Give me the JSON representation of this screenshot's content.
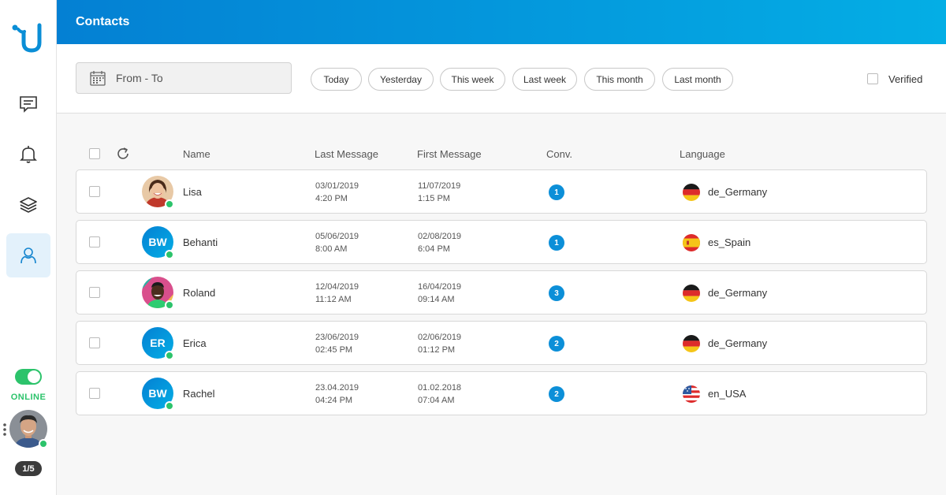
{
  "header": {
    "title": "Contacts"
  },
  "sidebar": {
    "items": [
      {
        "icon": "chat-icon"
      },
      {
        "icon": "bell-icon"
      },
      {
        "icon": "layers-icon"
      },
      {
        "icon": "contacts-icon",
        "active": true
      }
    ],
    "status_label": "ONLINE",
    "page_counter": "1/5"
  },
  "filters": {
    "date_placeholder": "From - To",
    "quick": [
      "Today",
      "Yesterday",
      "This week",
      "Last week",
      "This month",
      "Last month"
    ],
    "verified_label": "Verified"
  },
  "table": {
    "columns": {
      "name": "Name",
      "last": "Last Message",
      "first": "First Message",
      "conv": "Conv.",
      "lang": "Language"
    },
    "rows": [
      {
        "name": "Lisa",
        "avatar": "photo",
        "last_date": "03/01/2019",
        "last_time": "4:20 PM",
        "first_date": "11/07/2019",
        "first_time": "1:15 PM",
        "conv": "1",
        "flag": "germany",
        "lang": "de_Germany"
      },
      {
        "name": "Behanti",
        "avatar": "BW",
        "last_date": "05/06/2019",
        "last_time": "8:00 AM",
        "first_date": "02/08/2019",
        "first_time": "6:04 PM",
        "conv": "1",
        "flag": "spain",
        "lang": "es_Spain"
      },
      {
        "name": "Roland",
        "avatar": "photo",
        "last_date": "12/04/2019",
        "last_time": "11:12 AM",
        "first_date": "16/04/2019",
        "first_time": "09:14 AM",
        "conv": "3",
        "flag": "germany",
        "lang": "de_Germany"
      },
      {
        "name": "Erica",
        "avatar": "ER",
        "last_date": "23/06/2019",
        "last_time": "02:45 PM",
        "first_date": "02/06/2019",
        "first_time": "01:12 PM",
        "conv": "2",
        "flag": "germany",
        "lang": "de_Germany"
      },
      {
        "name": "Rachel",
        "avatar": "BW",
        "last_date": "23.04.2019",
        "last_time": "04:24 PM",
        "first_date": "01.02.2018",
        "first_time": "07:04 AM",
        "conv": "2",
        "flag": "usa",
        "lang": "en_USA"
      }
    ]
  },
  "colors": {
    "accent": "#0480d3",
    "accent_light": "#04aee5",
    "online": "#2cc36b"
  }
}
